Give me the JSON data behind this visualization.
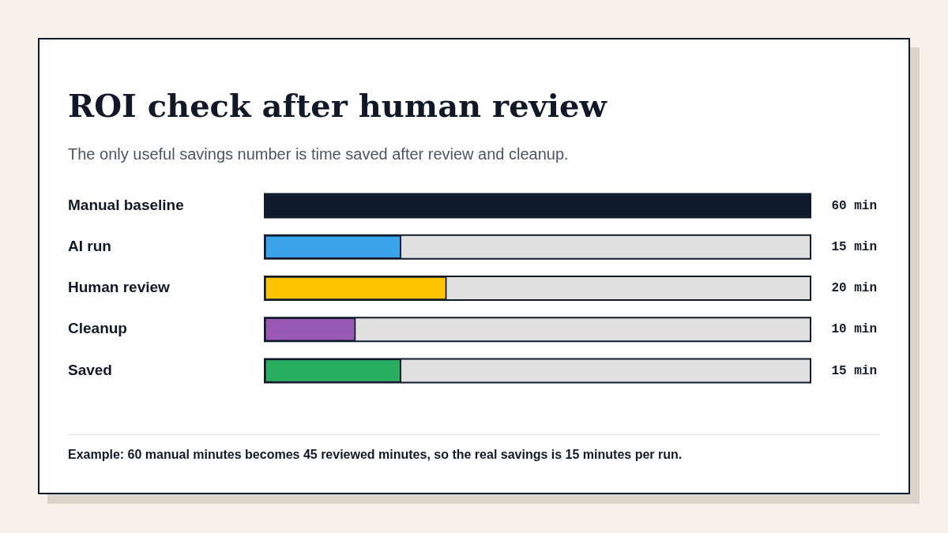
{
  "chart_data": {
    "type": "bar",
    "orientation": "horizontal",
    "title": "ROI check after human review",
    "subtitle": "The only useful savings number is time saved after review and cleanup.",
    "categories": [
      "Manual baseline",
      "AI run",
      "Human review",
      "Cleanup",
      "Saved"
    ],
    "values": [
      60,
      15,
      20,
      10,
      15
    ],
    "colors": [
      "#0f1b2d",
      "#3aa3ea",
      "#ffc400",
      "#9b59b6",
      "#27ae60"
    ],
    "value_labels": [
      "60 min",
      "15 min",
      "20 min",
      "10 min",
      "15 min"
    ],
    "xlim": [
      0,
      60
    ],
    "tick_labels": "y",
    "legend": false,
    "annotations": [
      "Example: 60 manual minutes becomes 45 reviewed minutes, so the real savings is 15 minutes per run."
    ]
  }
}
